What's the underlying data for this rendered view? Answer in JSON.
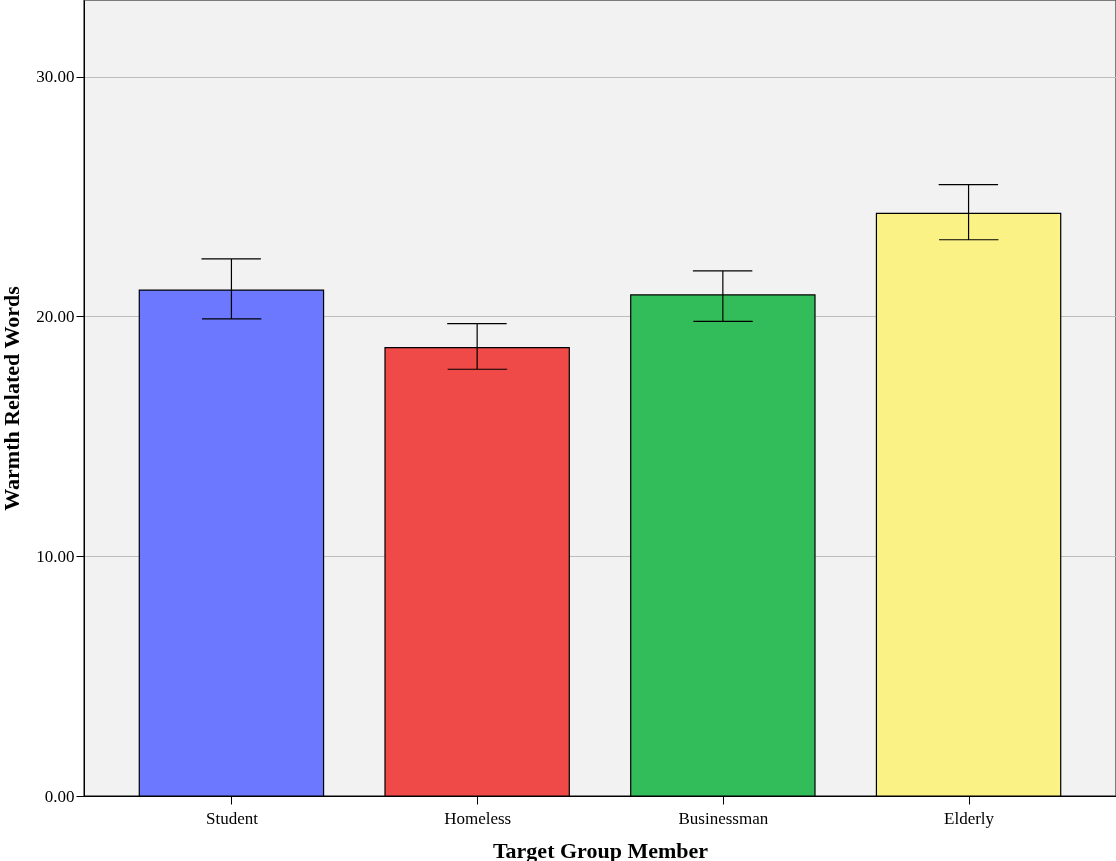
{
  "chart_data": {
    "type": "bar",
    "xlabel": "Target Group Member",
    "ylabel": "Warmth Related Words",
    "categories": [
      "Student",
      "Homeless",
      "Businessman",
      "Elderly"
    ],
    "values": [
      21.1,
      18.7,
      20.9,
      24.3
    ],
    "colors": [
      "#6b78ff",
      "#f04a48",
      "#33bd5a",
      "#fbf286"
    ],
    "errors": [
      [
        19.9,
        22.4
      ],
      [
        17.8,
        19.7
      ],
      [
        19.8,
        21.9
      ],
      [
        23.2,
        25.5
      ]
    ],
    "ylim": [
      0,
      33.2
    ],
    "yticks": [
      {
        "value": 0,
        "label": "0.00"
      },
      {
        "value": 10,
        "label": "10.00"
      },
      {
        "value": 20,
        "label": "20.00"
      },
      {
        "value": 30,
        "label": "30.00"
      }
    ],
    "grid": "y"
  }
}
